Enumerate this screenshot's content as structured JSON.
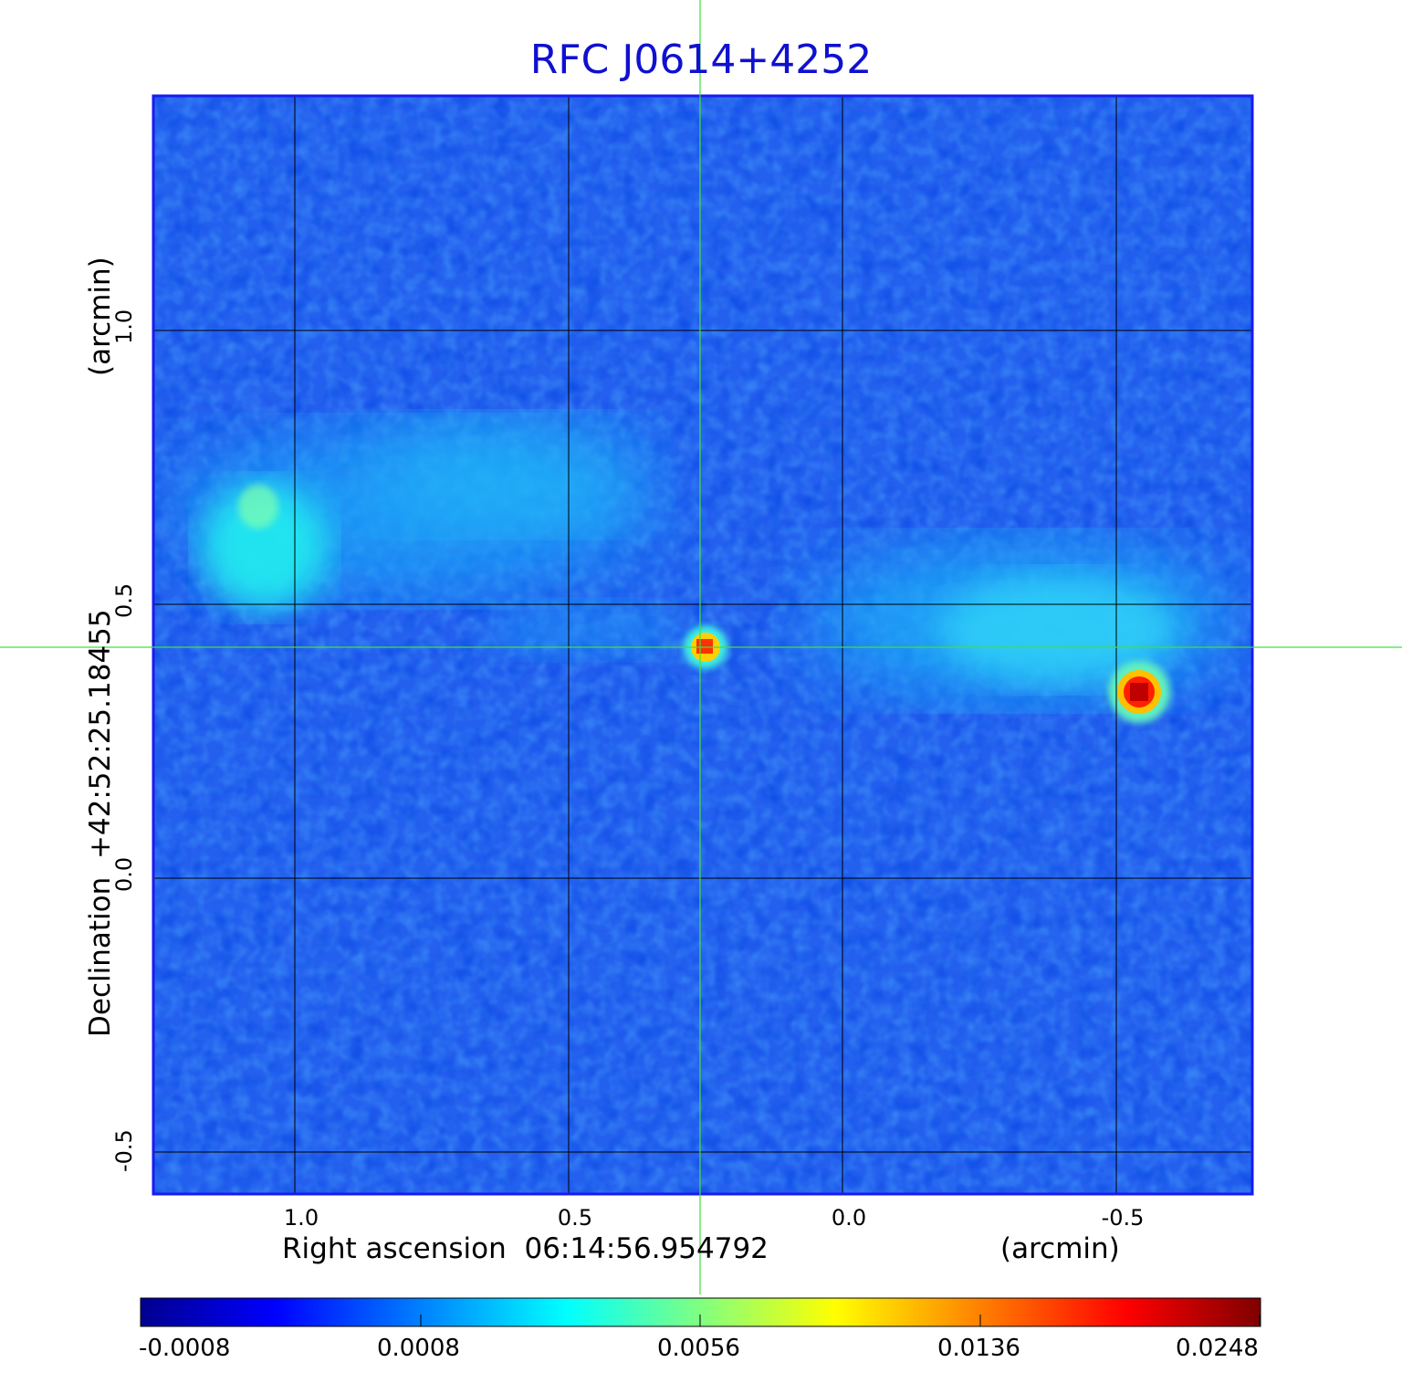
{
  "title": "RFC J0614+4252",
  "x_axis": {
    "label": "Right ascension  06:14:56.954792",
    "unit": "(arcmin)",
    "ticks": [
      "1.0",
      "0.5",
      "0.0",
      "-0.5"
    ]
  },
  "y_axis": {
    "label": "Declination  +42:52:25.18455",
    "unit": "(arcmin)",
    "ticks": [
      "1.0",
      "0.5",
      "0.0",
      "-0.5"
    ]
  },
  "colorbar": {
    "ticks": [
      "-0.0008",
      "0.0008",
      "0.0056",
      "0.0136",
      "0.0248"
    ],
    "colors": [
      "#00008f",
      "#0000ff",
      "#0080ff",
      "#00ffff",
      "#80ff80",
      "#ffff00",
      "#ff8000",
      "#ff0000",
      "#800000"
    ]
  },
  "colors": {
    "background": "#2060f0",
    "frame": "#1a1af0",
    "grid": "#000000",
    "crosshair": "#40e040",
    "title": "#1010d0"
  }
}
